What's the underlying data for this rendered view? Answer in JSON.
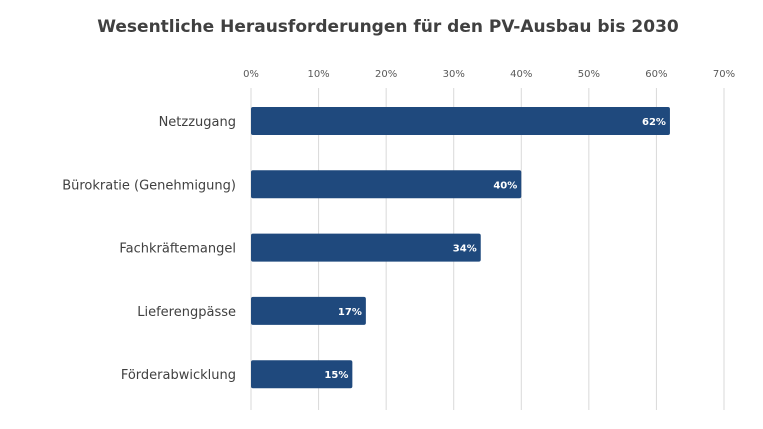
{
  "chart_data": {
    "type": "bar",
    "orientation": "horizontal",
    "title": "Wesentliche Herausforderungen für den PV-Ausbau bis 2030",
    "categories": [
      "Netzzugang",
      "Bürokratie (Genehmigung)",
      "Fachkräftemangel",
      "Lieferengpässe",
      "Förderabwicklung"
    ],
    "values": [
      62,
      40,
      34,
      17,
      15
    ],
    "data_labels": [
      "62%",
      "40%",
      "34%",
      "17%",
      "15%"
    ],
    "xlim": [
      0,
      70
    ],
    "xticks": [
      0,
      10,
      20,
      30,
      40,
      50,
      60,
      70
    ],
    "xtick_labels": [
      "0%",
      "10%",
      "20%",
      "30%",
      "40%",
      "50%",
      "60%",
      "70%"
    ],
    "axis_position": "top",
    "grid": true,
    "bar_color": "#1f497d",
    "grid_color": "#d9d9d9"
  }
}
